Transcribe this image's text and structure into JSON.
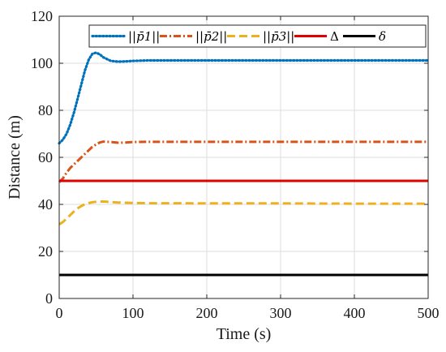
{
  "chart_data": {
    "type": "line",
    "xlabel": "Time (s)",
    "ylabel": "Distance (m)",
    "xlim": [
      0,
      500
    ],
    "ylim": [
      0,
      120
    ],
    "xticks": [
      "0",
      "100",
      "200",
      "300",
      "400",
      "500"
    ],
    "yticks": [
      "0",
      "20",
      "40",
      "60",
      "80",
      "100",
      "120"
    ],
    "grid": true,
    "legend_position": "top",
    "series": [
      {
        "name": "||p̄1||",
        "color": "#0072BD",
        "style": "dotted",
        "x": [
          0,
          5,
          10,
          15,
          20,
          25,
          30,
          35,
          40,
          45,
          50,
          55,
          60,
          70,
          80,
          90,
          100,
          120,
          150,
          200,
          300,
          400,
          500
        ],
        "y": [
          66,
          67.5,
          70,
          74,
          79,
          85,
          91,
          97,
          101.5,
          104,
          104.5,
          103.8,
          102.5,
          101,
          100.7,
          100.8,
          101,
          101.2,
          101.2,
          101.2,
          101.2,
          101.2,
          101.2
        ]
      },
      {
        "name": "||p̄2||",
        "color": "#D95319",
        "style": "dashdot",
        "x": [
          0,
          5,
          10,
          15,
          20,
          25,
          30,
          35,
          40,
          45,
          50,
          55,
          60,
          70,
          80,
          90,
          100,
          120,
          150,
          200,
          300,
          400,
          500
        ],
        "y": [
          49.5,
          51,
          53.5,
          55.5,
          57,
          58.5,
          60,
          61.5,
          63,
          64.5,
          65.5,
          66.3,
          66.7,
          66.5,
          66.2,
          66.3,
          66.5,
          66.6,
          66.6,
          66.6,
          66.6,
          66.6,
          66.6
        ]
      },
      {
        "name": "||p̄3||",
        "color": "#EDB120",
        "style": "dashed",
        "x": [
          0,
          5,
          10,
          15,
          20,
          25,
          30,
          35,
          40,
          45,
          50,
          55,
          60,
          70,
          80,
          90,
          100,
          120,
          150,
          200,
          300,
          400,
          500
        ],
        "y": [
          31.5,
          32.5,
          34,
          35.5,
          37,
          38.3,
          39.3,
          40.1,
          40.6,
          40.9,
          41.1,
          41.2,
          41.2,
          41,
          40.8,
          40.7,
          40.6,
          40.5,
          40.5,
          40.4,
          40.4,
          40.3,
          40.3
        ]
      },
      {
        "name": "Δ",
        "color": "#E00000",
        "style": "solid",
        "x": [
          0,
          500
        ],
        "y": [
          50,
          50
        ]
      },
      {
        "name": "δ",
        "color": "#000000",
        "style": "solid",
        "x": [
          0,
          500
        ],
        "y": [
          10,
          10
        ]
      }
    ]
  }
}
